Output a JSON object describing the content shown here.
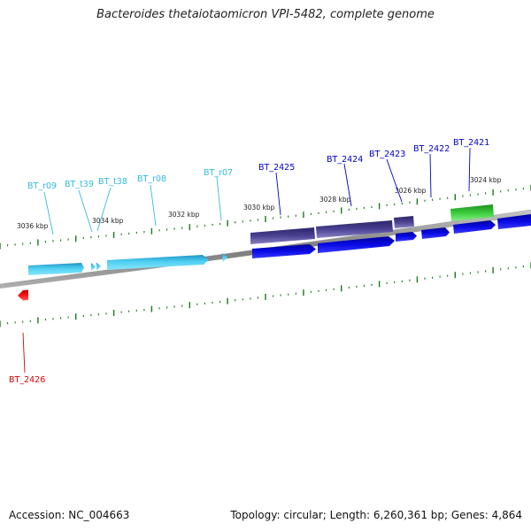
{
  "title": "Bacteroides thetaiotaomicron VPI-5482, complete genome",
  "footer": {
    "accession": "Accession: NC_004663",
    "summary": "Topology: circular; Length: 6,260,361 bp; Genes: 4,864"
  },
  "colors": {
    "backbone": "#8a8a8a",
    "ticks": "#1a7a1a",
    "rna_gene": "#33ccee",
    "cds_forward": "#0000dd",
    "operon": "#4a4088",
    "green_feature": "#33bb33",
    "reverse_gene": "#ee0000"
  },
  "scale_labels": [
    "3036 kbp",
    "3034 kbp",
    "3032 kbp",
    "3030 kbp",
    "3028 kbp",
    "3026 kbp",
    "3024 kbp"
  ],
  "gene_labels": [
    {
      "text": "BT_r09",
      "color": "#33bbdd"
    },
    {
      "text": "BT_t39",
      "color": "#33bbdd"
    },
    {
      "text": "BT_t38",
      "color": "#33bbdd"
    },
    {
      "text": "BT_r08",
      "color": "#33bbdd"
    },
    {
      "text": "BT_r07",
      "color": "#33bbdd"
    },
    {
      "text": "BT_2425",
      "color": "#0000cc"
    },
    {
      "text": "BT_2424",
      "color": "#0000cc"
    },
    {
      "text": "BT_2423",
      "color": "#0000cc"
    },
    {
      "text": "BT_2422",
      "color": "#0000cc"
    },
    {
      "text": "BT_2421",
      "color": "#0000cc"
    },
    {
      "text": "BT_2426",
      "color": "#dd0000"
    }
  ]
}
